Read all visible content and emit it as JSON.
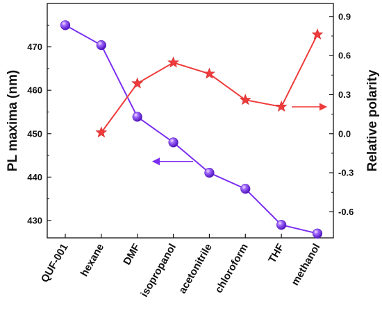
{
  "chart_data": {
    "type": "line",
    "categories": [
      "QUF-001",
      "hexane",
      "DMF",
      "isopropanol",
      "acetonitrile",
      "chloroform",
      "THF",
      "methanol"
    ],
    "series": [
      {
        "axis": "left",
        "marker": "sphere",
        "color": "#7b2ff2",
        "values": [
          475,
          470.4,
          453.9,
          448,
          441,
          437.3,
          429,
          427
        ]
      },
      {
        "axis": "right",
        "marker": "star",
        "color": "#ee3b3b",
        "values": [
          null,
          0.009,
          0.386,
          0.546,
          0.46,
          0.259,
          0.207,
          0.762
        ]
      }
    ],
    "ylabel_left": "PL maxima (nm)",
    "ylabel_right": "Relative polarity",
    "ylim_left": [
      426,
      480
    ],
    "yticks_left": [
      430,
      440,
      450,
      460,
      470
    ],
    "ylim_right": [
      -0.8,
      1.0
    ],
    "yticks_right": [
      "-0.6",
      "-0.3",
      "0.0",
      "0.3",
      "0.6",
      "0.9"
    ],
    "grid": false,
    "annotations": [
      {
        "type": "arrow",
        "direction": "left",
        "target_axis": "left",
        "color": "#7b2ff2"
      },
      {
        "type": "arrow",
        "direction": "right",
        "target_axis": "right",
        "color": "#ee3b3b"
      }
    ]
  }
}
